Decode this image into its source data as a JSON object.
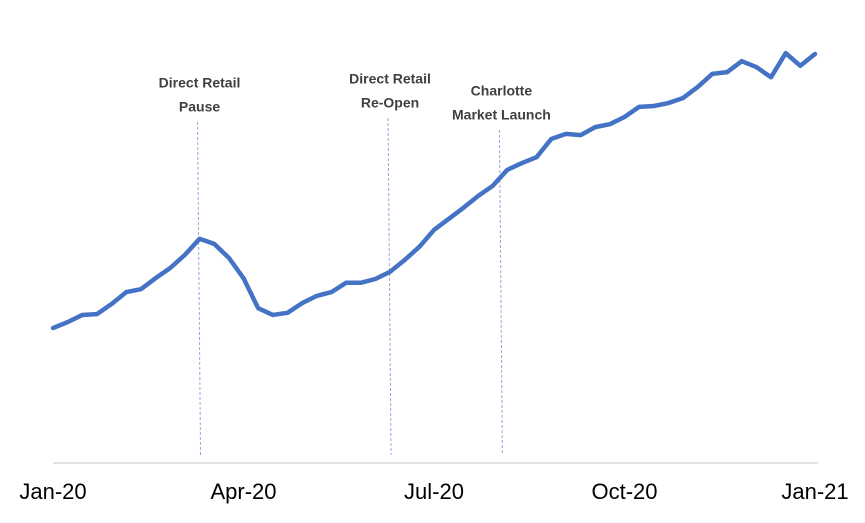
{
  "chart_data": {
    "type": "line",
    "categories": [
      "Jan-20",
      null,
      null,
      null,
      null,
      null,
      null,
      null,
      null,
      null,
      null,
      null,
      null,
      "Apr-20",
      null,
      null,
      null,
      null,
      null,
      null,
      null,
      null,
      null,
      null,
      null,
      null,
      "Jul-20",
      null,
      null,
      null,
      null,
      null,
      null,
      null,
      null,
      null,
      null,
      null,
      null,
      "Oct-20",
      null,
      null,
      null,
      null,
      null,
      null,
      null,
      null,
      null,
      null,
      null,
      null,
      "Jan-21"
    ],
    "series": [
      {
        "color": "#4472c4",
        "values": [
          31.9,
          33.3,
          35.0,
          35.2,
          37.6,
          40.4,
          41.1,
          43.7,
          46.1,
          49.2,
          53.0,
          51.8,
          48.5,
          43.7,
          36.6,
          35.0,
          35.5,
          37.8,
          39.5,
          40.4,
          42.6,
          42.6,
          43.5,
          45.2,
          48.0,
          51.1,
          55.1,
          57.7,
          60.3,
          63.1,
          65.5,
          69.3,
          70.9,
          72.3,
          76.6,
          77.8,
          77.5,
          79.4,
          80.1,
          81.8,
          84.2,
          84.4,
          85.1,
          86.3,
          88.9,
          92.0,
          92.4,
          95.0,
          93.6,
          91.2,
          96.9,
          93.9,
          96.7
        ]
      }
    ],
    "ylim": [
      0,
      100
    ],
    "annotations": [
      {
        "x": 10,
        "lines": [
          "Direct Retail",
          "Pause"
        ]
      },
      {
        "x": 23,
        "lines": [
          "Direct Retail",
          "Re-Open"
        ]
      },
      {
        "x": 30.6,
        "lines": [
          "Charlotte",
          "Market Launch"
        ]
      }
    ]
  }
}
